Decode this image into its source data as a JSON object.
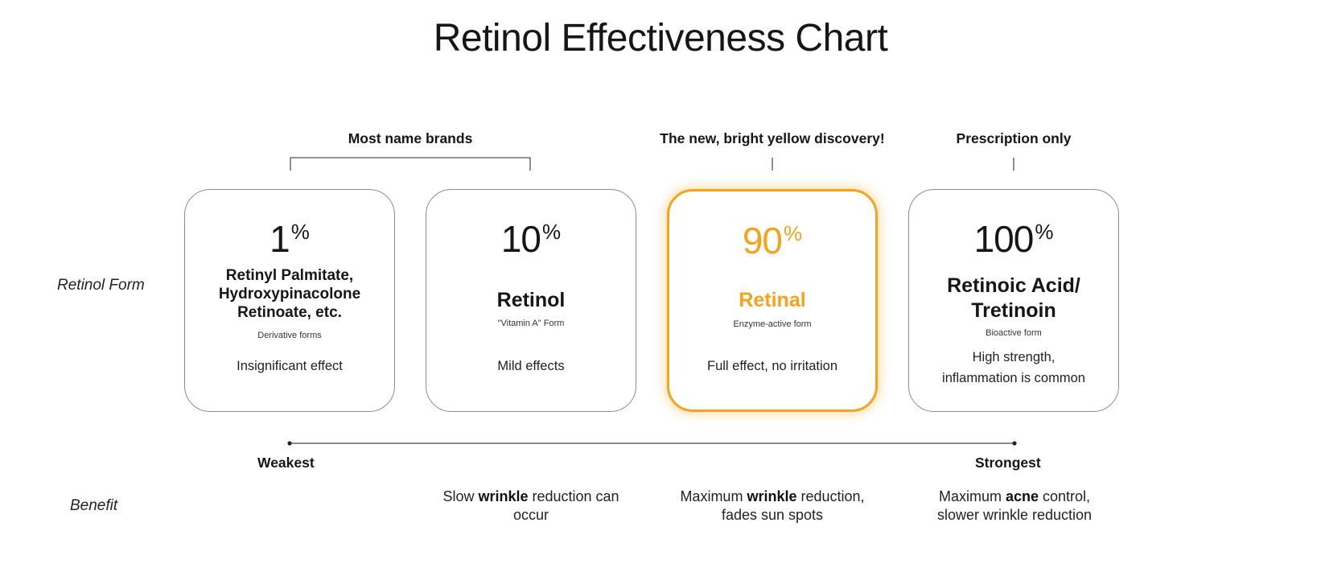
{
  "title": "Retinol Effectiveness Chart",
  "row_labels": {
    "form": "Retinol Form",
    "benefit": "Benefit"
  },
  "groups": {
    "name_brands": "Most name brands",
    "discovery": "The new, bright yellow discovery!",
    "prescription": "Prescription only"
  },
  "highlight_color": "#f7a21b",
  "cards": [
    {
      "pct": "1",
      "pct_sign": "%",
      "name": "Retinyl Palmitate, Hydroxypinacolone Retinoate, etc.",
      "sub": "Derivative forms",
      "effect": "Insignificant effect"
    },
    {
      "pct": "10",
      "pct_sign": "%",
      "name": "Retinol",
      "sub": "\"Vitamin A\" Form",
      "effect": "Mild effects"
    },
    {
      "pct": "90",
      "pct_sign": "%",
      "name": "Retinal",
      "sub": "Enzyme-active form",
      "effect": "Full effect, no irritation"
    },
    {
      "pct": "100",
      "pct_sign": "%",
      "name": "Retinoic Acid/ Tretinoin",
      "sub": "Bioactive form",
      "effect": "High strength, inflammation  is common"
    }
  ],
  "scale": {
    "weakest": "Weakest",
    "strongest": "Strongest"
  },
  "benefits": [
    {
      "pre": "Slow ",
      "bold": "wrinkle",
      "post": " reduction can occur"
    },
    {
      "pre": "Maximum ",
      "bold": "wrinkle",
      "post": " reduction, fades sun spots"
    },
    {
      "pre": "Maximum ",
      "bold": "acne",
      "post": " control, slower wrinkle reduction"
    }
  ]
}
